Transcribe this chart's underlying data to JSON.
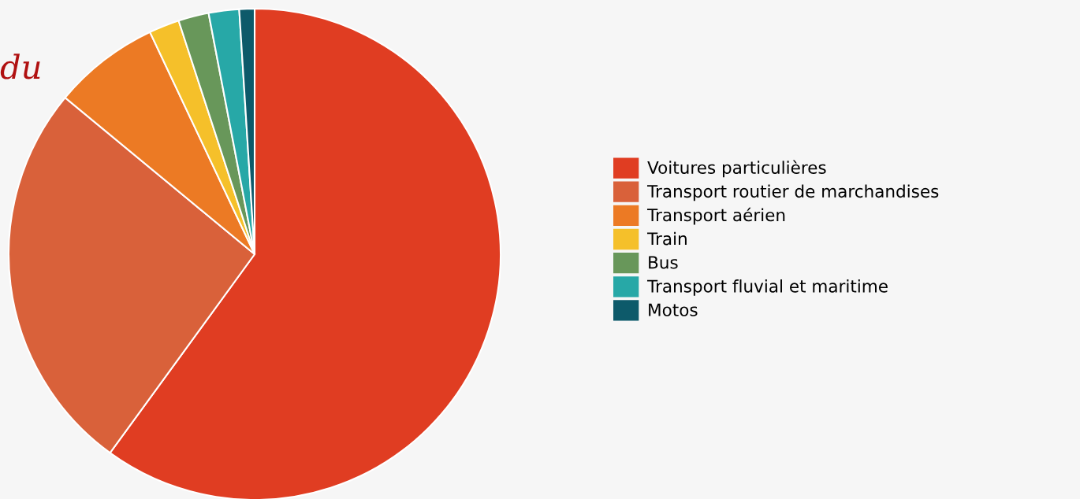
{
  "chart_data": {
    "type": "pie",
    "categories": [
      "Voitures particulières",
      "Transport routier de marchandises",
      "Transport aérien",
      "Train",
      "Bus",
      "Transport fluvial et maritime",
      "Motos"
    ],
    "values": [
      60,
      26,
      7,
      2,
      2,
      2,
      1
    ],
    "colors": [
      "#e03d22",
      "#d9613a",
      "#ec7a24",
      "#f5c02a",
      "#68975a",
      "#27a8a7",
      "#0d5a6a"
    ],
    "legend": "right",
    "annotations": [
      "du"
    ]
  }
}
